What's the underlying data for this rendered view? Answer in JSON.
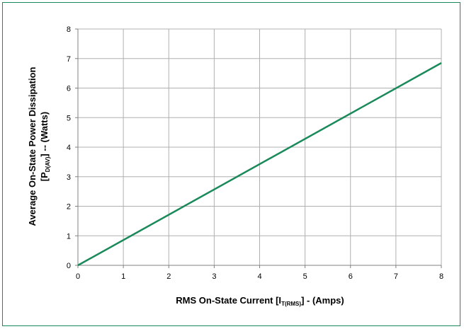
{
  "chart_data": {
    "type": "line",
    "x": [
      0,
      8
    ],
    "series": [
      {
        "values": [
          0,
          6.85
        ],
        "color": "#1a8a5a"
      }
    ],
    "xlabel": {
      "main": "RMS On-State Current [I",
      "sub": "T(RMS)",
      "tail": "] - (Amps)"
    },
    "ylabel": {
      "line1": "Average On-State Power Dissipation",
      "line2_main": "[P",
      "line2_sub": "D(AV)",
      "line2_tail": "] -- (Watts)"
    },
    "xlim": [
      0,
      8
    ],
    "ylim": [
      0,
      8
    ],
    "x_ticks": [
      "0",
      "1",
      "2",
      "3",
      "4",
      "5",
      "6",
      "7",
      "8"
    ],
    "y_ticks": [
      "0",
      "1",
      "2",
      "3",
      "4",
      "5",
      "6",
      "7",
      "8"
    ],
    "grid": true,
    "colors": {
      "frame": "#1a8a5a",
      "grid": "#b0b0b0",
      "axis": "#808080",
      "line": "#1a8a5a"
    }
  }
}
